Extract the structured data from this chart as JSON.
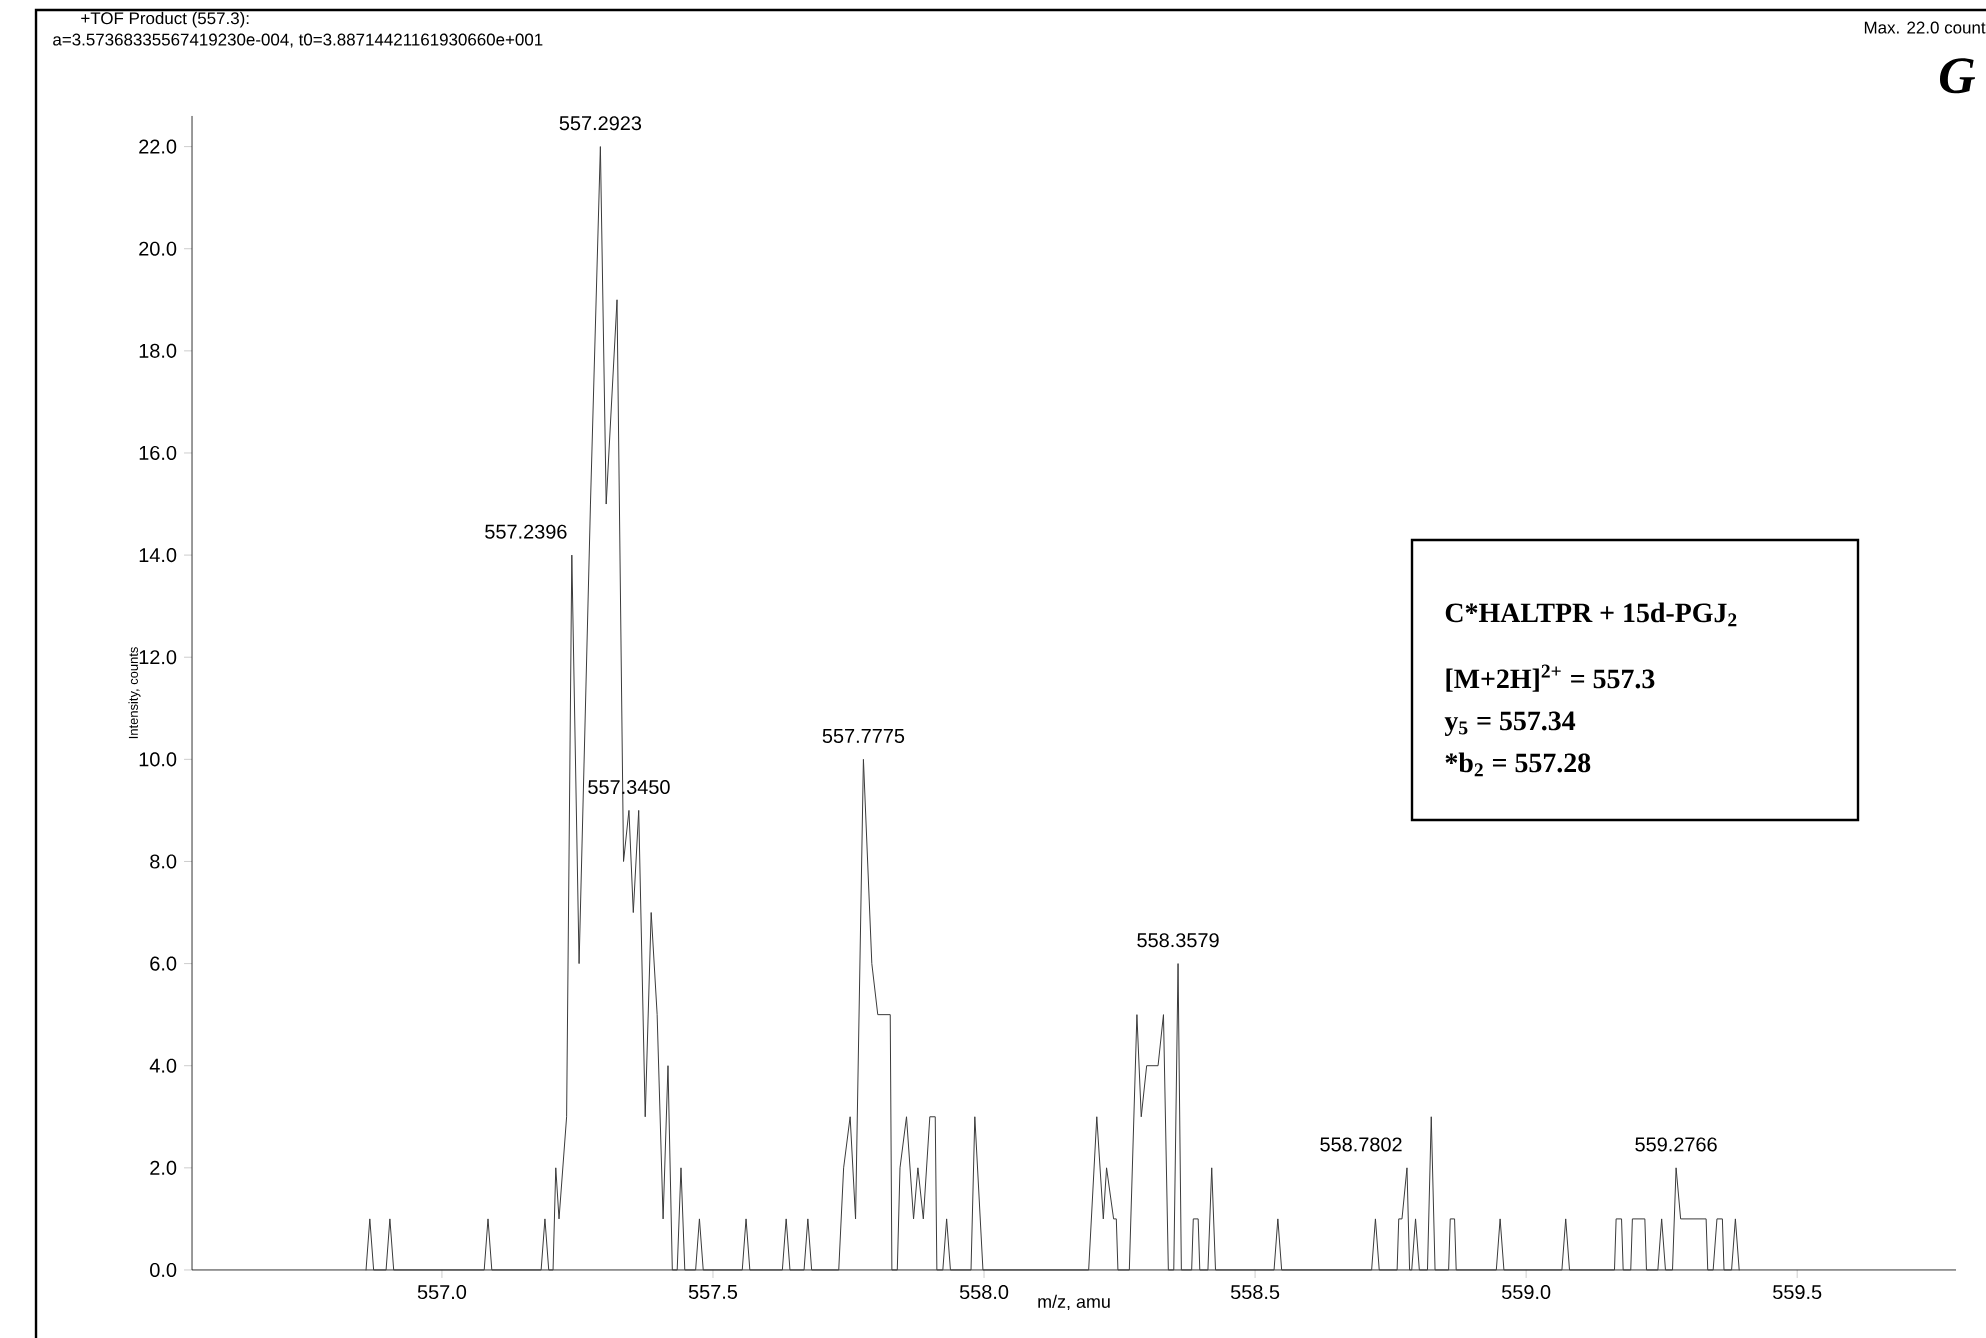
{
  "chart_data": {
    "type": "line",
    "title": "+TOF Product (557.3):",
    "subtitle": "a=3.57368335567419230e-004, t0=3.88714421161930660e+001",
    "xlabel": "m/z, amu",
    "ylabel": "Intensity, counts",
    "color": "#3a3a3a",
    "x": [
      556.86,
      556.867,
      556.874,
      556.897,
      556.904,
      556.911,
      557.078,
      557.085,
      557.092,
      557.183,
      557.19,
      557.197,
      557.205,
      557.21,
      557.216,
      557.23,
      557.2396,
      557.253,
      557.274,
      557.2923,
      557.303,
      557.323,
      557.335,
      557.345,
      557.353,
      557.363,
      557.375,
      557.386,
      557.397,
      557.408,
      557.417,
      557.425,
      557.434,
      557.441,
      557.448,
      557.468,
      557.475,
      557.482,
      557.554,
      557.561,
      557.568,
      557.628,
      557.635,
      557.642,
      557.668,
      557.675,
      557.682,
      557.732,
      557.741,
      557.753,
      557.763,
      557.7775,
      557.793,
      557.804,
      557.827,
      557.83,
      557.84,
      557.845,
      557.857,
      557.87,
      557.878,
      557.888,
      557.9,
      557.91,
      557.913,
      557.924,
      557.931,
      557.938,
      557.976,
      557.983,
      557.993,
      557.998,
      558.193,
      558.208,
      558.22,
      558.226,
      558.239,
      558.244,
      558.247,
      558.268,
      558.282,
      558.29,
      558.3,
      558.321,
      558.331,
      558.34,
      558.35,
      558.3579,
      558.364,
      558.383,
      558.386,
      558.395,
      558.398,
      558.413,
      558.42,
      558.427,
      558.535,
      558.542,
      558.549,
      558.715,
      558.722,
      558.729,
      558.762,
      558.765,
      558.771,
      558.7802,
      558.785,
      558.789,
      558.796,
      558.803,
      558.818,
      558.825,
      558.832,
      558.857,
      558.86,
      558.868,
      558.871,
      558.945,
      558.952,
      558.959,
      559.066,
      559.073,
      559.08,
      559.163,
      559.166,
      559.176,
      559.179,
      559.193,
      559.196,
      559.219,
      559.222,
      559.243,
      559.25,
      559.257,
      559.27,
      559.2766,
      559.285,
      559.332,
      559.335,
      559.345,
      559.352,
      559.362,
      559.365,
      559.379,
      559.386,
      559.393
    ],
    "values": [
      0,
      1,
      0,
      0,
      1,
      0,
      0,
      1,
      0,
      0,
      1,
      0,
      0,
      2,
      1,
      3,
      14,
      6,
      15,
      22,
      15,
      19,
      8,
      9,
      7,
      9,
      3,
      7,
      5,
      1,
      4,
      0,
      0,
      2,
      0,
      0,
      1,
      0,
      0,
      1,
      0,
      0,
      1,
      0,
      0,
      1,
      0,
      0,
      2,
      3,
      1,
      10,
      6,
      5,
      5,
      0,
      0,
      2,
      3,
      1,
      2,
      1,
      3,
      3,
      0,
      0,
      1,
      0,
      0,
      3,
      1,
      0,
      0,
      3,
      1,
      2,
      1,
      1,
      0,
      0,
      5,
      3,
      4,
      4,
      5,
      0,
      0,
      6,
      0,
      0,
      1,
      1,
      0,
      0,
      2,
      0,
      0,
      1,
      0,
      0,
      1,
      0,
      0,
      1,
      1,
      2,
      0,
      0,
      1,
      0,
      0,
      3,
      0,
      0,
      1,
      1,
      0,
      0,
      1,
      0,
      0,
      1,
      0,
      0,
      1,
      1,
      0,
      0,
      1,
      1,
      0,
      0,
      1,
      0,
      0,
      2,
      1,
      1,
      0,
      0,
      1,
      1,
      0,
      0,
      1,
      0
    ],
    "xlim": [
      556.539,
      559.793
    ],
    "ylim": [
      0,
      22.6
    ],
    "xticks": [
      {
        "value": 557.0,
        "label": "557.0"
      },
      {
        "value": 557.5,
        "label": "557.5"
      },
      {
        "value": 558.0,
        "label": "558.0"
      },
      {
        "value": 558.5,
        "label": "558.5"
      },
      {
        "value": 559.0,
        "label": "559.0"
      },
      {
        "value": 559.5,
        "label": "559.5"
      }
    ],
    "yticks": [
      {
        "value": 0,
        "label": "0.0"
      },
      {
        "value": 2,
        "label": "2.0"
      },
      {
        "value": 4,
        "label": "4.0"
      },
      {
        "value": 6,
        "label": "6.0"
      },
      {
        "value": 8,
        "label": "8.0"
      },
      {
        "value": 10,
        "label": "10.0"
      },
      {
        "value": 12,
        "label": "12.0"
      },
      {
        "value": 14,
        "label": "14.0"
      },
      {
        "value": 16,
        "label": "16.0"
      },
      {
        "value": 18,
        "label": "18.0"
      },
      {
        "value": 20,
        "label": "20.0"
      },
      {
        "value": 22,
        "label": "22.0"
      }
    ],
    "annotations": [
      "Max. 22.0 count",
      "*G*",
      "**C*HALTPR + 15d-PGJ$_{2}$**",
      "**[M+2H]$^{2+}$ = 557.3**",
      "**y$_{5}$ = 557.34**",
      "***b$_{2}$ = 557.28**",
      {
        "text": "557.2923",
        "x": 557.2923,
        "y": 22
      },
      {
        "text": "557.2396",
        "x": 557.2396,
        "y": 14
      },
      {
        "text": "557.3450",
        "x": 557.345,
        "y": 9
      },
      {
        "text": "557.7775",
        "x": 557.7775,
        "y": 10
      },
      {
        "text": "558.3579",
        "x": 558.3579,
        "y": 6
      },
      {
        "text": "558.7802",
        "x": 558.7802,
        "y": 2
      },
      {
        "text": "559.2766",
        "x": 559.2766,
        "y": 2
      }
    ]
  }
}
